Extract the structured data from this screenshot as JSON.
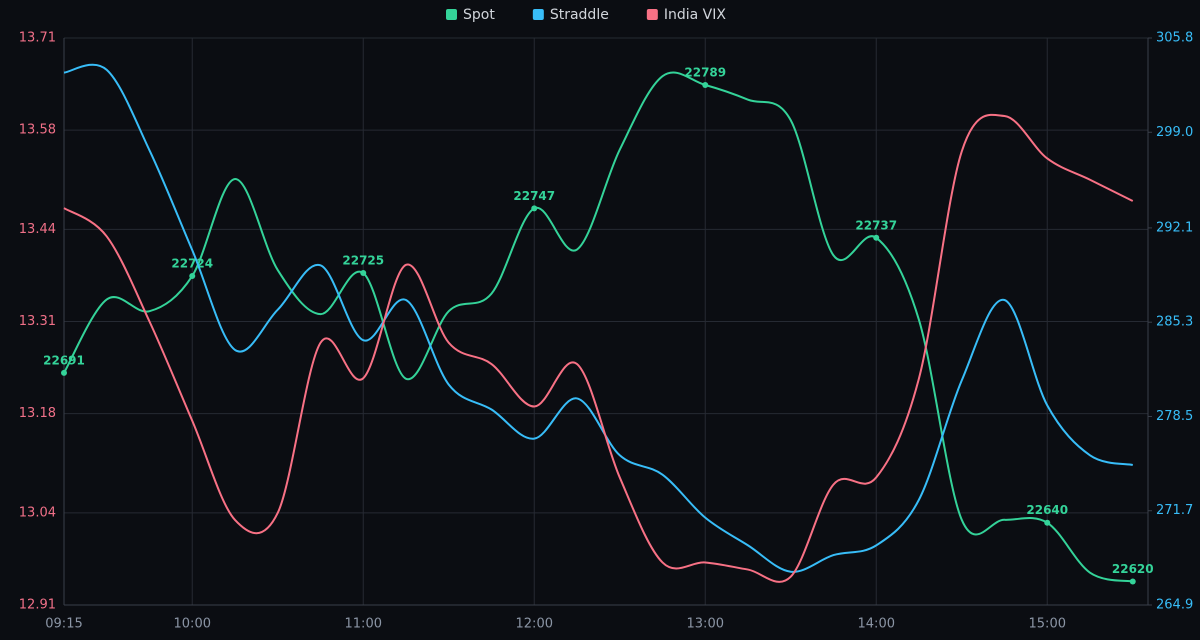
{
  "chart_data": {
    "type": "line",
    "categories": [
      "09:15",
      null,
      null,
      "10:00",
      null,
      null,
      null,
      "11:00",
      null,
      null,
      null,
      "12:00",
      null,
      null,
      null,
      "13:00",
      null,
      null,
      null,
      "14:00",
      null,
      null,
      null,
      "15:00",
      null,
      null
    ],
    "series": [
      {
        "name": "Spot",
        "color": "#34d399",
        "axis": "y3",
        "values": [
          22691,
          22716,
          22712,
          22724,
          22757,
          22726,
          22711,
          22725,
          22689,
          22712,
          22718,
          22747,
          22733,
          22767,
          22792,
          22789,
          22784,
          22777,
          22731,
          22737,
          22709,
          22641,
          22641,
          22640,
          22623,
          22620
        ],
        "value_labels": [
          "22691",
          null,
          null,
          "22724",
          null,
          null,
          null,
          "22725",
          null,
          null,
          null,
          "22747",
          null,
          null,
          null,
          "22789",
          null,
          null,
          null,
          "22737",
          null,
          null,
          null,
          "22640",
          null,
          "22620"
        ]
      },
      {
        "name": "Straddle",
        "color": "#38bdf8",
        "axis": "y2",
        "values": [
          303.3,
          303.5,
          297.7,
          290.5,
          283.3,
          286.2,
          289.4,
          284.0,
          286.9,
          280.8,
          279.0,
          276.9,
          279.8,
          275.7,
          274.3,
          271.2,
          269.2,
          267.3,
          268.5,
          269.2,
          272.5,
          281.1,
          286.9,
          279.3,
          275.7,
          275.0
        ]
      },
      {
        "name": "India VIX",
        "color": "#f87185",
        "axis": "y",
        "values": [
          13.47,
          13.43,
          13.31,
          13.17,
          13.03,
          13.04,
          13.28,
          13.23,
          13.39,
          13.28,
          13.25,
          13.19,
          13.25,
          13.09,
          12.97,
          12.97,
          12.96,
          12.95,
          13.08,
          13.09,
          13.23,
          13.55,
          13.6,
          13.54,
          13.51,
          13.48
        ]
      }
    ],
    "ylim": [
      12.91,
      13.71
    ],
    "yticks": [
      12.91,
      13.04,
      13.18,
      13.31,
      13.44,
      13.58,
      13.71
    ],
    "y2lim": [
      264.9,
      305.8
    ],
    "y2ticks": [
      264.9,
      271.7,
      278.5,
      285.3,
      292.1,
      {
        "value": 299.0,
        "label": "299.0"
      },
      305.8
    ],
    "y3lim": [
      22612,
      22805
    ],
    "grid": true,
    "legend": "top"
  }
}
